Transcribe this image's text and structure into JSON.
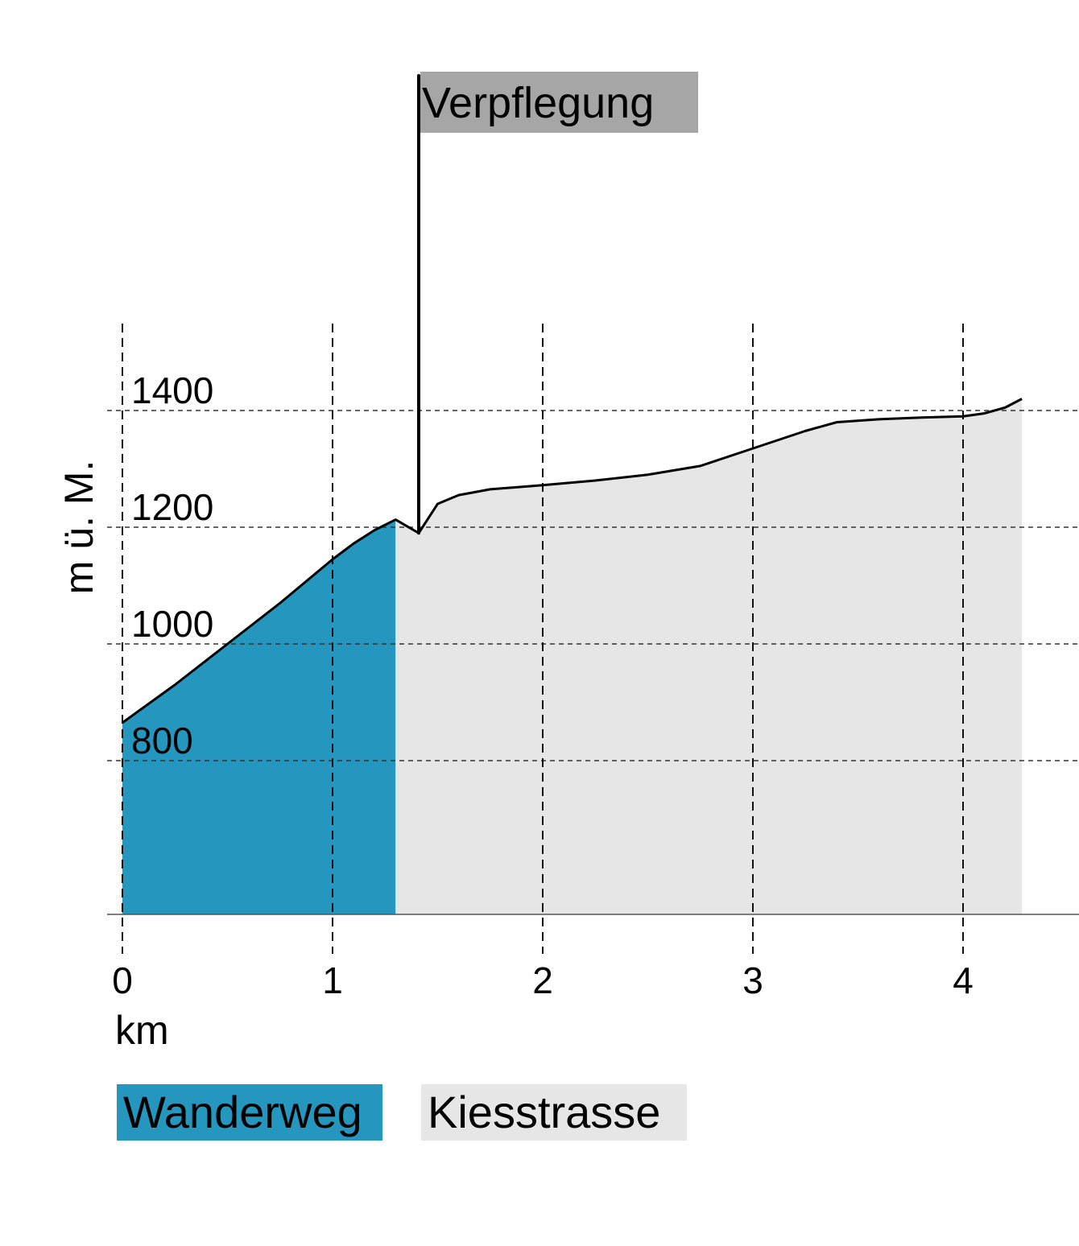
{
  "chart_data": {
    "type": "area",
    "xlabel": "km",
    "ylabel": "m ü. M.",
    "x_ticks": [
      0,
      1,
      2,
      3,
      4
    ],
    "y_ticks": [
      800,
      1000,
      1200,
      1400
    ],
    "xlim": [
      0,
      4.3
    ],
    "grid": true,
    "profile": {
      "x": [
        0,
        0.25,
        0.5,
        0.75,
        1.0,
        1.1,
        1.2,
        1.3,
        1.41,
        1.5,
        1.6,
        1.75,
        2.0,
        2.25,
        2.5,
        2.75,
        3.0,
        3.25,
        3.4,
        3.6,
        3.8,
        4.0,
        4.1,
        4.2,
        4.28
      ],
      "y": [
        865,
        930,
        1000,
        1070,
        1145,
        1172,
        1195,
        1213,
        1190,
        1240,
        1255,
        1265,
        1272,
        1280,
        1290,
        1305,
        1335,
        1365,
        1380,
        1385,
        1388,
        1390,
        1395,
        1405,
        1420
      ]
    },
    "series": [
      {
        "name": "Wanderweg",
        "x_range": [
          0,
          1.3
        ],
        "color": "#2596be"
      },
      {
        "name": "Kiesstrasse",
        "x_range": [
          1.3,
          4.28
        ],
        "color": "#e6e6e6"
      }
    ],
    "annotation": {
      "label": "Verpflegung",
      "x": 1.41,
      "color": "#a6a6a6"
    }
  }
}
